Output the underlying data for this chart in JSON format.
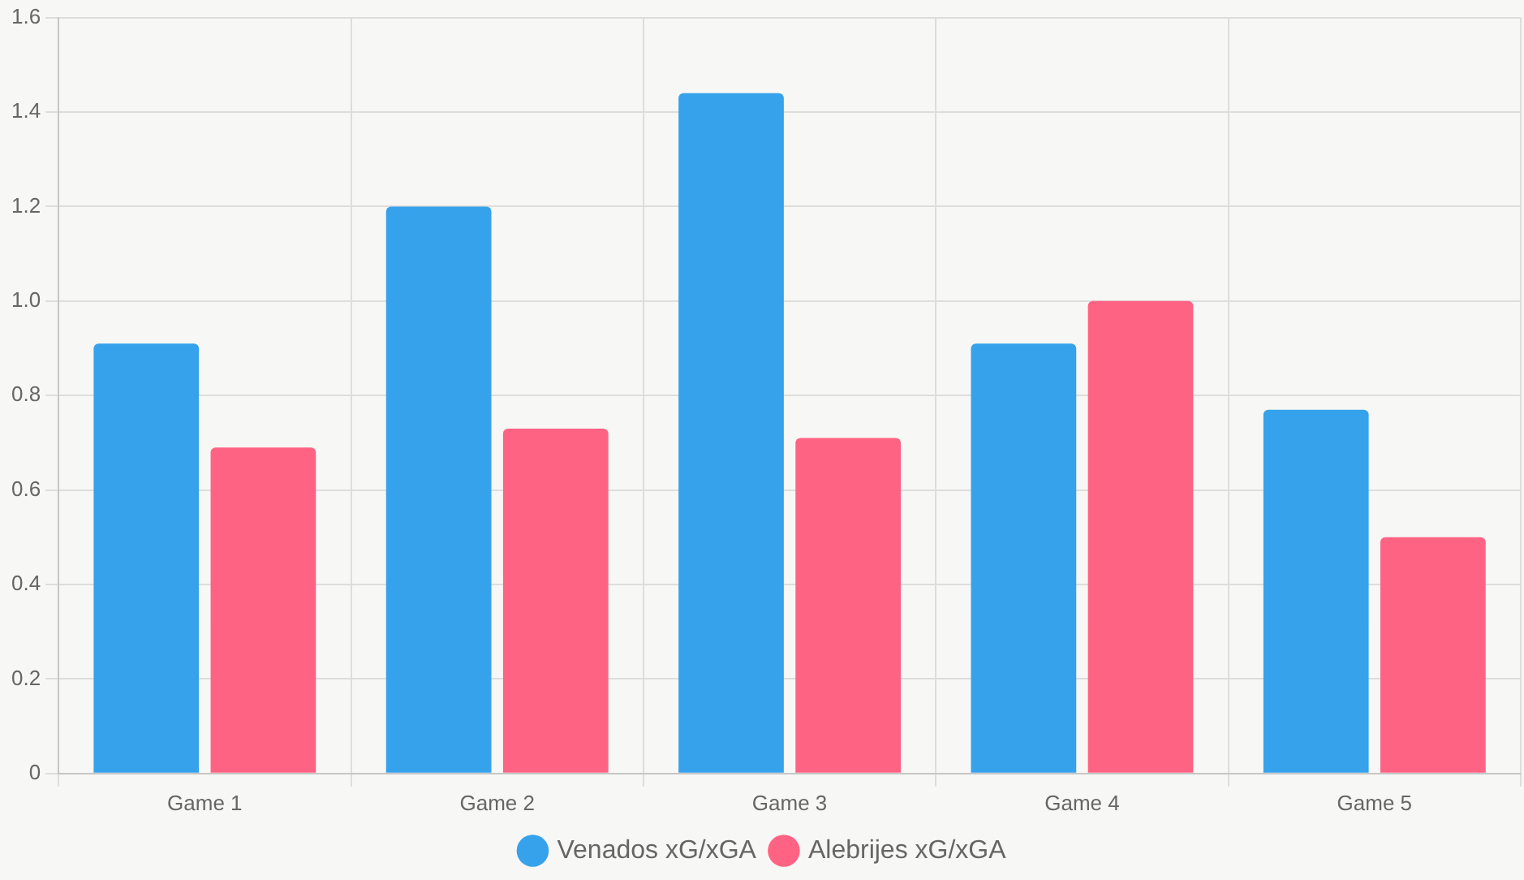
{
  "chart_data": {
    "type": "bar",
    "categories": [
      "Game 1",
      "Game 2",
      "Game 3",
      "Game 4",
      "Game 5"
    ],
    "series": [
      {
        "name": "Venados xG/xGA",
        "color": "#36a2eb",
        "values": [
          0.91,
          1.2,
          1.44,
          0.91,
          0.77
        ]
      },
      {
        "name": "Alebrijes xG/xGA",
        "color": "#ff6384",
        "values": [
          0.69,
          0.73,
          0.71,
          1.0,
          0.5
        ]
      }
    ],
    "ylim": [
      0,
      1.6
    ],
    "yticks": [
      0,
      0.2,
      0.4,
      0.6,
      0.8,
      {
        "value": 1,
        "label": "1.0"
      },
      1.2,
      1.4,
      1.6
    ],
    "grid": true,
    "legend": "bottom"
  }
}
